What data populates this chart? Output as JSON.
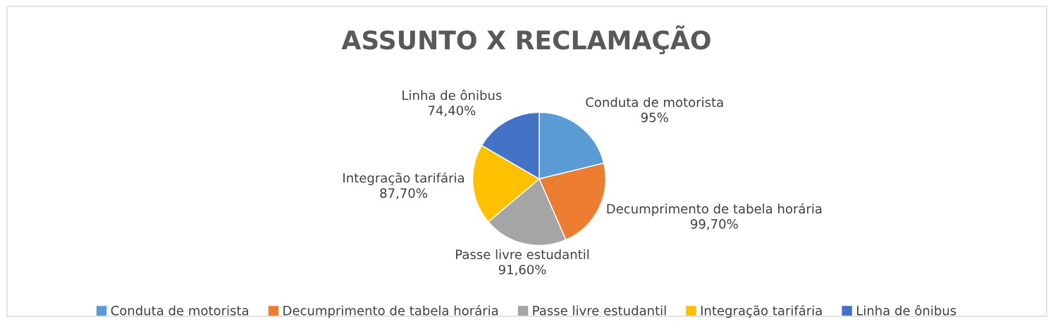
{
  "chart_data": {
    "type": "pie",
    "title": "ASSUNTO X RECLAMAÇÃO",
    "categories": [
      "Conduta de motorista",
      "Decumprimento de tabela horária",
      "Passe livre estudantil",
      "Integração tarifária",
      "Linha de ônibus"
    ],
    "values": [
      95,
      99.7,
      91.6,
      87.7,
      74.4
    ],
    "value_labels": [
      "95%",
      "99,70%",
      "91,60%",
      "87,70%",
      "74,40%"
    ],
    "colors": [
      "#5b9bd5",
      "#ed7d31",
      "#a5a5a5",
      "#ffc000",
      "#4472c4"
    ],
    "legend": "bottom"
  }
}
